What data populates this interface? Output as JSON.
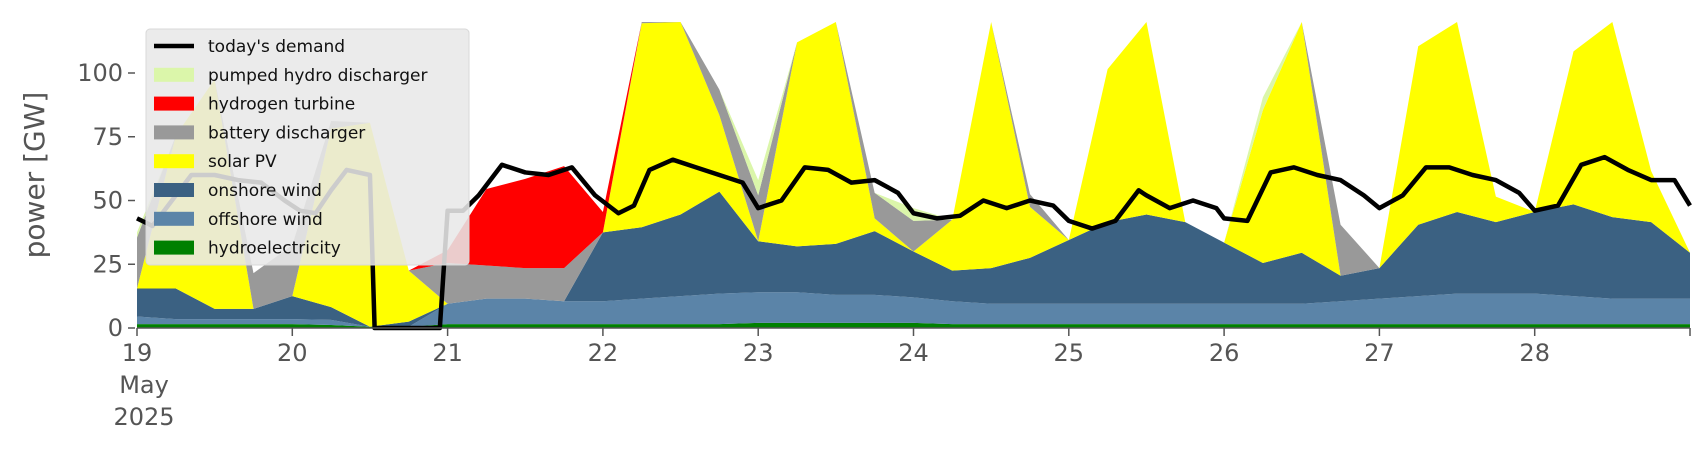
{
  "chart_data": {
    "type": "area",
    "ylabel": "power [GW]",
    "ylim": [
      0,
      120
    ],
    "xlim": [
      19,
      29
    ],
    "grid": false,
    "legend_position": "top-left",
    "x_ticks": [
      19,
      20,
      21,
      22,
      23,
      24,
      25,
      26,
      27,
      28
    ],
    "x_tick_labels": [
      "19",
      "20",
      "21",
      "22",
      "23",
      "24",
      "25",
      "26",
      "27",
      "28"
    ],
    "x_sub_labels": [
      "May",
      "2025"
    ],
    "y_ticks": [
      0,
      25,
      50,
      75,
      100
    ],
    "x": [
      19.0,
      19.25,
      19.5,
      19.75,
      20.0,
      20.25,
      20.5,
      20.75,
      21.0,
      21.25,
      21.5,
      21.75,
      22.0,
      22.25,
      22.5,
      22.75,
      23.0,
      23.25,
      23.5,
      23.75,
      24.0,
      24.25,
      24.5,
      24.75,
      25.0,
      25.25,
      25.5,
      25.75,
      26.0,
      26.25,
      26.5,
      26.75,
      27.0,
      27.25,
      27.5,
      27.75,
      28.0,
      28.25,
      28.5,
      28.75,
      29.0
    ],
    "series": [
      {
        "name": "hydroelectricity",
        "color": "#008000",
        "values": [
          1.5,
          1.5,
          1.5,
          1.5,
          1.5,
          1.2,
          0.5,
          0.5,
          1.5,
          1.5,
          1.5,
          1.5,
          1.5,
          1.5,
          1.5,
          1.5,
          2.0,
          2.0,
          2.0,
          2.0,
          2.0,
          1.5,
          1.5,
          1.5,
          1.5,
          1.5,
          1.5,
          1.5,
          1.5,
          1.5,
          1.5,
          1.5,
          1.5,
          1.5,
          1.5,
          1.5,
          1.5,
          1.5,
          1.5,
          1.5,
          1.5
        ]
      },
      {
        "name": "offshore wind",
        "color": "#5b84a8",
        "values": [
          3,
          2,
          2,
          2,
          2,
          2,
          0,
          0,
          8,
          10,
          10,
          9,
          9,
          10,
          11,
          12,
          12,
          12,
          11,
          11,
          10,
          9,
          8,
          8,
          8,
          8,
          8,
          8,
          8,
          8,
          8,
          9,
          10,
          11,
          12,
          12,
          12,
          11,
          10,
          10,
          10
        ]
      },
      {
        "name": "onshore wind",
        "color": "#3b6182",
        "values": [
          11,
          12,
          4,
          4,
          9,
          5,
          0,
          2,
          0,
          0,
          0,
          0,
          27,
          28,
          32,
          40,
          20,
          18,
          20,
          25,
          18,
          12,
          14,
          18,
          25,
          32,
          35,
          32,
          24,
          16,
          20,
          10,
          12,
          28,
          32,
          28,
          32,
          36,
          32,
          30,
          18
        ]
      },
      {
        "name": "solar PV",
        "color": "#ffff00",
        "values": [
          0,
          60,
          90,
          0,
          0,
          70,
          80,
          20,
          0,
          0,
          0,
          0,
          0,
          80,
          120,
          30,
          0,
          80,
          95,
          5,
          0,
          20,
          100,
          20,
          0,
          60,
          120,
          0,
          0,
          60,
          110,
          0,
          0,
          70,
          95,
          10,
          0,
          60,
          80,
          20,
          0
        ]
      },
      {
        "name": "battery discharger",
        "color": "#999999",
        "values": [
          20,
          0,
          0,
          14,
          20,
          3,
          0,
          0,
          16,
          13,
          12,
          13,
          0,
          5,
          5,
          10,
          18,
          0,
          0,
          10,
          12,
          0,
          0,
          5,
          0,
          0,
          0,
          0,
          0,
          0,
          0,
          20,
          0,
          0,
          0,
          0,
          0,
          0,
          0,
          0,
          0
        ]
      },
      {
        "name": "hydrogen turbine",
        "color": "#ff0000",
        "values": [
          0,
          0,
          0,
          0,
          0,
          0,
          0,
          0,
          5,
          30,
          35,
          40,
          8,
          0,
          0,
          0,
          0,
          0,
          0,
          0,
          0,
          0,
          0,
          0,
          0,
          0,
          0,
          0,
          0,
          0,
          0,
          0,
          0,
          0,
          0,
          0,
          0,
          0,
          0,
          0,
          0
        ]
      },
      {
        "name": "pumped hydro discharger",
        "color": "#dbf6aa",
        "values": [
          2,
          0,
          0,
          0,
          0,
          0,
          0,
          0,
          0,
          0,
          0,
          0,
          0,
          0,
          0,
          0,
          6,
          0,
          0,
          0,
          5,
          0,
          0,
          0,
          0,
          0,
          0,
          0,
          0,
          5,
          0,
          0,
          0,
          0,
          0,
          0,
          0,
          0,
          0,
          0,
          0
        ]
      }
    ],
    "demand": {
      "name": "today's demand",
      "color": "#000000",
      "x": [
        19.0,
        19.1,
        19.2,
        19.35,
        19.5,
        19.65,
        19.8,
        19.95,
        20.05,
        20.15,
        20.25,
        20.35,
        20.5,
        20.53,
        20.6,
        20.75,
        20.95,
        21.0,
        21.1,
        21.2,
        21.35,
        21.5,
        21.65,
        21.8,
        21.95,
        22.1,
        22.2,
        22.3,
        22.45,
        22.6,
        22.75,
        22.9,
        23.0,
        23.15,
        23.3,
        23.45,
        23.6,
        23.75,
        23.9,
        24.0,
        24.15,
        24.3,
        24.45,
        24.6,
        24.75,
        24.9,
        25.0,
        25.15,
        25.3,
        25.45,
        25.5,
        25.65,
        25.8,
        25.95,
        26.0,
        26.15,
        26.3,
        26.45,
        26.6,
        26.75,
        26.9,
        27.0,
        27.15,
        27.3,
        27.45,
        27.6,
        27.75,
        27.9,
        28.0,
        28.15,
        28.3,
        28.45,
        28.6,
        28.75,
        28.9,
        29.0
      ],
      "values": [
        43,
        40,
        48,
        60,
        60,
        58,
        57,
        50,
        46,
        45,
        54,
        62,
        60,
        0,
        0,
        0,
        0,
        46,
        46,
        52,
        64,
        61,
        60,
        63,
        52,
        45,
        48,
        62,
        66,
        63,
        60,
        57,
        47,
        50,
        63,
        62,
        57,
        58,
        53,
        45,
        43,
        44,
        50,
        47,
        50,
        48,
        42,
        39,
        42,
        54,
        52,
        47,
        50,
        47,
        43,
        42,
        61,
        63,
        60,
        58,
        52,
        47,
        52,
        63,
        63,
        60,
        58,
        53,
        46,
        48,
        64,
        67,
        62,
        58,
        58,
        48
      ]
    },
    "legend": [
      "today's demand",
      "pumped hydro discharger",
      "hydrogen turbine",
      "battery discharger",
      "solar PV",
      "onshore wind",
      "offshore wind",
      "hydroelectricity"
    ],
    "legend_colors": [
      "#000000",
      "#dbf6aa",
      "#ff0000",
      "#999999",
      "#ffff00",
      "#3b6182",
      "#5b84a8",
      "#008000"
    ]
  }
}
